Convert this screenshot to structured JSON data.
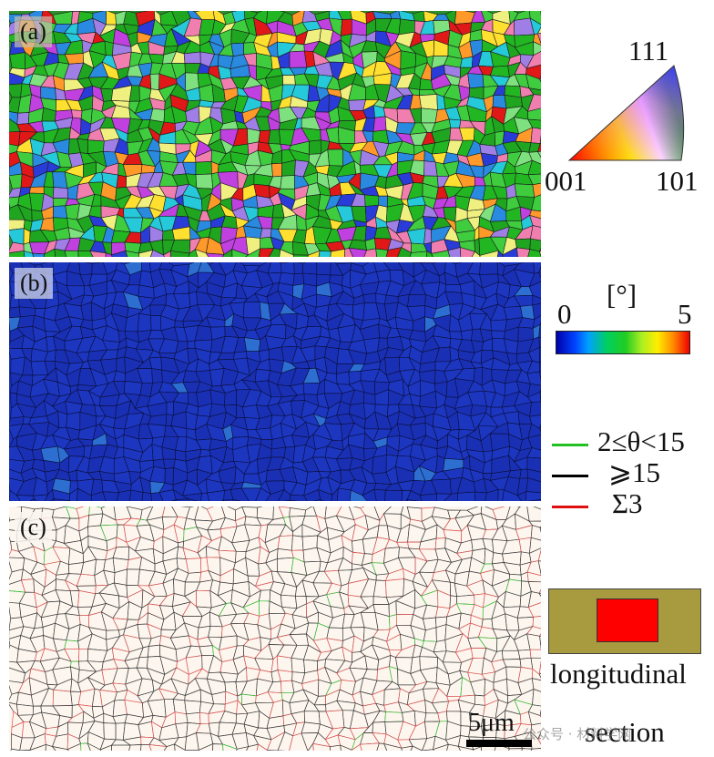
{
  "panels": {
    "a": {
      "label": "(a)"
    },
    "b": {
      "label": "(b)"
    },
    "c": {
      "label": "(c)"
    }
  },
  "ipf_key": {
    "top": "111",
    "left": "001",
    "right": "101"
  },
  "kam_scale": {
    "min": "0",
    "unit": "[°]",
    "max": "5"
  },
  "boundary_legend": [
    {
      "label": "2≤θ<15",
      "color": "#22c022"
    },
    {
      "label": "⩾15",
      "color": "#000000"
    },
    {
      "label": "Σ3",
      "color": "#e01010"
    }
  ],
  "section_icon": {
    "outer_color": "#a89a3e",
    "inner_color": "#ff0000",
    "caption_1": "longitudinal",
    "caption_2": "section"
  },
  "scale_bar": {
    "label": "5μm"
  },
  "watermark": "公众号 · 材料学网",
  "grain_colors": [
    "#22b722",
    "#3fcc3f",
    "#1fa51f",
    "#e01818",
    "#2a3cd8",
    "#c040e0",
    "#ffe030",
    "#ff9a2a",
    "#26c9d9",
    "#9f7fe6",
    "#f07fb0",
    "#7fe07f",
    "#2a8ae0",
    "#f0f080"
  ]
}
